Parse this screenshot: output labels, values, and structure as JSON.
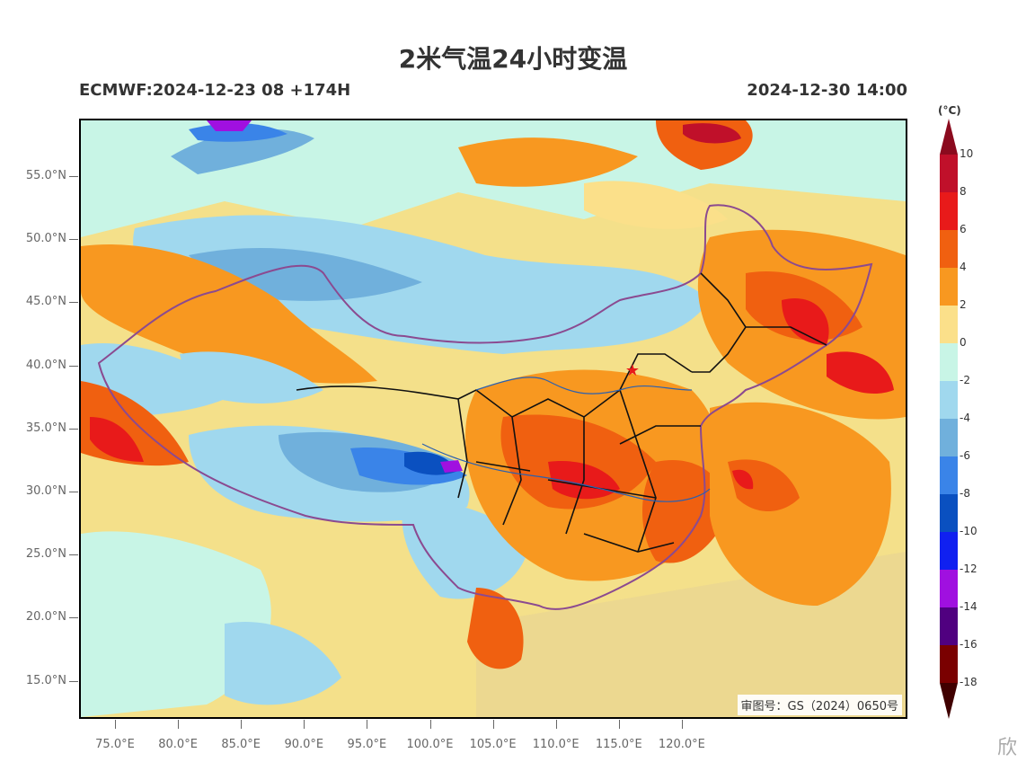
{
  "title": "2米气温24小时变温",
  "subtitle_left": "ECMWF:2024-12-23 08 +174H",
  "subtitle_right": "2024-12-30 14:00",
  "review_number": "审图号：GS（2024）0650号",
  "watermark": "欣",
  "latitude_labels": [
    "55.0°N",
    "50.0°N",
    "45.0°N",
    "40.0°N",
    "35.0°N",
    "30.0°N",
    "25.0°N",
    "20.0°N",
    "15.0°N"
  ],
  "longitude_labels": [
    "75.0°E",
    "80.0°E",
    "85.0°E",
    "90.0°E",
    "95.0°E",
    "100.0°E",
    "105.0°E",
    "110.0°E",
    "115.0°E",
    "120.0°E"
  ],
  "colorbar": {
    "unit": "(°C)",
    "tick_labels": [
      "10",
      "8",
      "6",
      "4",
      "2",
      "0",
      "-2",
      "-4",
      "-6",
      "-8",
      "-10",
      "-12",
      "-14",
      "-16",
      "-18"
    ],
    "colors": {
      "above_10": "#8b0a1e",
      "8_to_10": "#c0102a",
      "6_to_8": "#e81a1a",
      "4_to_6": "#f06010",
      "2_to_4": "#f89820",
      "0_to_2": "#fbe08a",
      "-2_to_0": "#c8f5e6",
      "-4_to_-2": "#a0d8ee",
      "-6_to_-4": "#70b0dc",
      "-8_to_-6": "#3a84e8",
      "-10_to_-8": "#0a50c0",
      "-12_to_-10": "#1020f0",
      "-14_to_-12": "#a010e0",
      "-16_to_-14": "#500080",
      "-18_to_-16": "#7a0000",
      "below_-18": "#400000"
    }
  },
  "map": {
    "extent": {
      "lon_min": 72,
      "lon_max": 135,
      "lat_min": 12,
      "lat_max": 59.5
    },
    "markers": [
      {
        "name": "beijing-star",
        "lon": 116.4,
        "lat": 39.9,
        "color": "#e81a1a"
      }
    ]
  }
}
